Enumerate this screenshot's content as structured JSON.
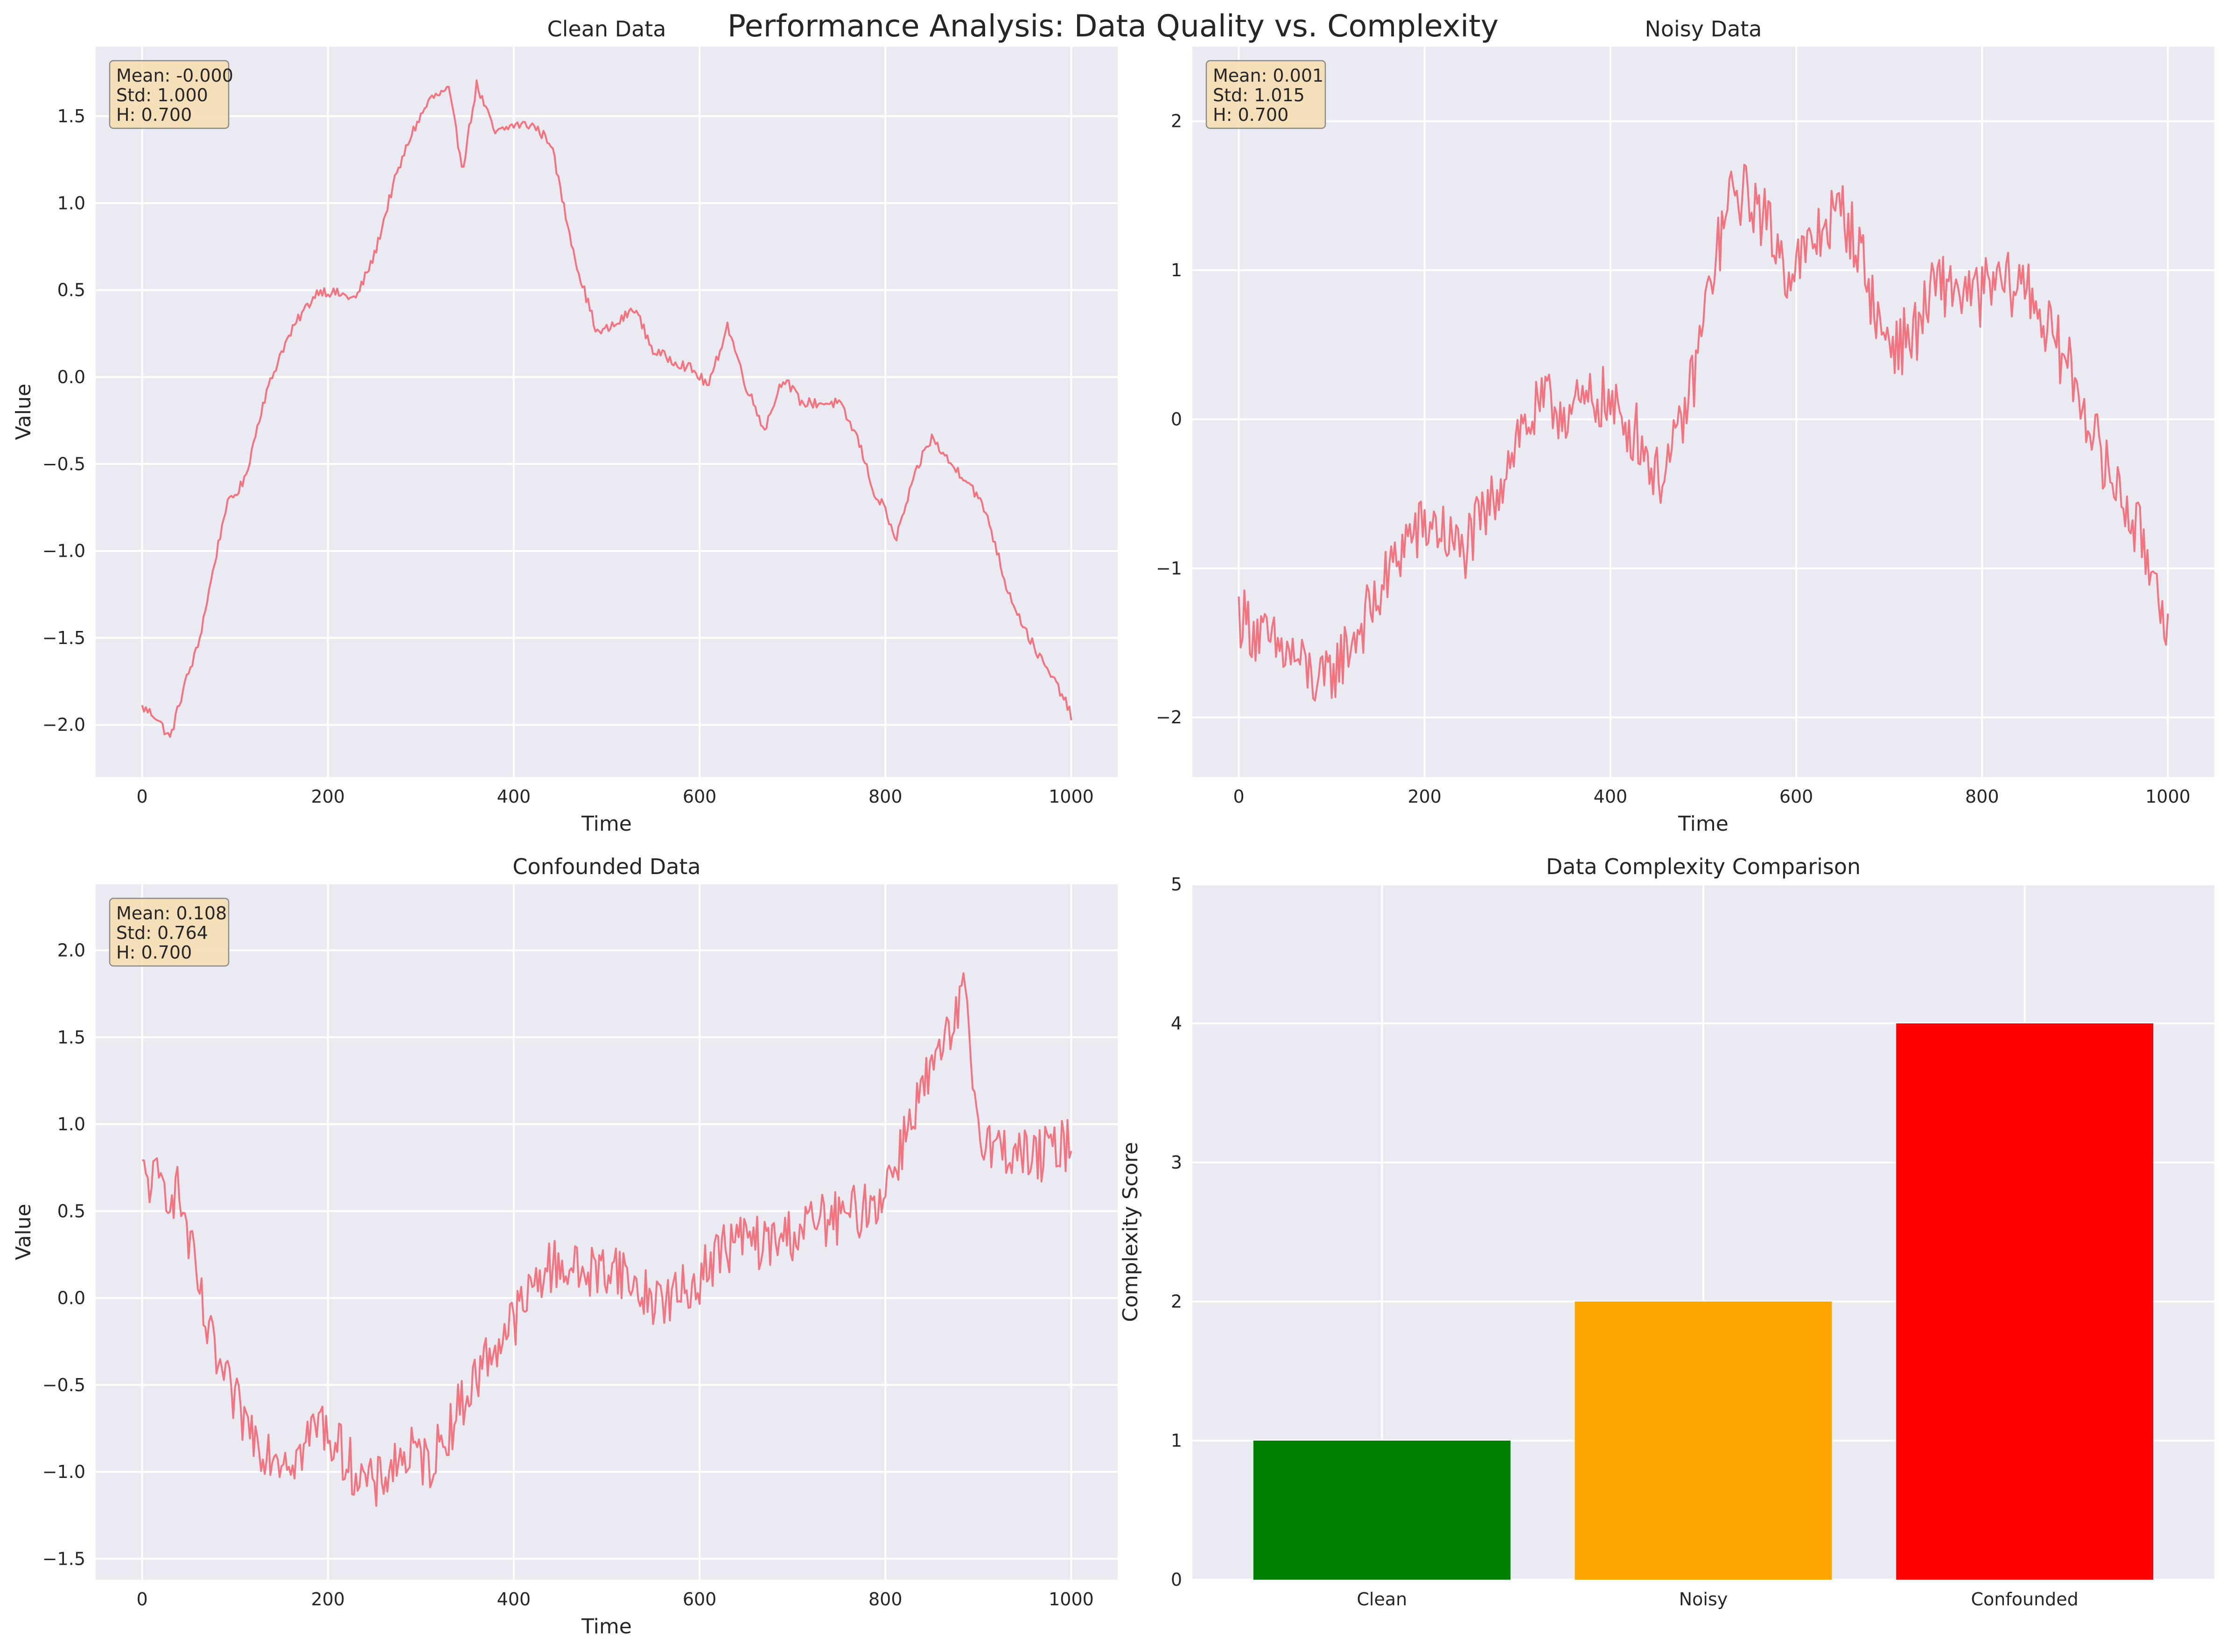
{
  "figure": {
    "title": "Performance Analysis: Data Quality vs. Complexity"
  },
  "colors": {
    "line": "#f3737f",
    "axes_bg": "#eaeaf2",
    "grid": "#ffffff",
    "statbox_fill": "#f5deb3",
    "bar_colors": [
      "#008000",
      "#ffa500",
      "#ff0000"
    ]
  },
  "chart_data": [
    {
      "type": "line",
      "title": "Clean Data",
      "xlabel": "Time",
      "ylabel": "Value",
      "xlim": [
        -50,
        1050
      ],
      "ylim": [
        -2.3,
        1.9
      ],
      "xticks": [
        0,
        200,
        400,
        600,
        800,
        1000
      ],
      "yticks": [
        -2.0,
        -1.5,
        -1.0,
        -0.5,
        0.0,
        0.5,
        1.0,
        1.5
      ],
      "grid": true,
      "stats": [
        "Mean: -0.000",
        "Std: 1.000",
        "H: 0.700"
      ],
      "noise": 0.03,
      "series": [
        {
          "x": [
            0,
            15,
            30,
            45,
            60,
            75,
            90,
            110,
            130,
            150,
            170,
            190,
            210,
            230,
            250,
            270,
            290,
            310,
            330,
            345,
            360,
            380,
            400,
            420,
            440,
            455,
            470,
            490,
            510,
            530,
            550,
            570,
            590,
            610,
            630,
            650,
            670,
            690,
            710,
            730,
            750,
            770,
            790,
            800,
            810,
            830,
            840,
            850,
            870,
            890,
            910,
            930,
            950,
            970,
            990,
            1000
          ],
          "y": [
            -1.9,
            -1.95,
            -2.08,
            -1.78,
            -1.55,
            -1.15,
            -0.75,
            -0.6,
            -0.15,
            0.15,
            0.35,
            0.5,
            0.48,
            0.45,
            0.7,
            1.1,
            1.4,
            1.6,
            1.65,
            1.2,
            1.68,
            1.4,
            1.45,
            1.45,
            1.35,
            0.95,
            0.6,
            0.25,
            0.3,
            0.4,
            0.15,
            0.1,
            0.05,
            -0.05,
            0.3,
            -0.05,
            -0.3,
            0.0,
            -0.15,
            -0.15,
            -0.15,
            -0.35,
            -0.7,
            -0.75,
            -0.95,
            -0.6,
            -0.45,
            -0.35,
            -0.5,
            -0.6,
            -0.8,
            -1.2,
            -1.45,
            -1.65,
            -1.82,
            -1.95
          ]
        }
      ]
    },
    {
      "type": "line",
      "title": "Noisy Data",
      "xlabel": "Time",
      "ylabel": "",
      "xlim": [
        -50,
        1050
      ],
      "ylim": [
        -2.4,
        2.5
      ],
      "xticks": [
        0,
        200,
        400,
        600,
        800,
        1000
      ],
      "yticks": [
        -2,
        -1,
        0,
        1,
        2
      ],
      "grid": true,
      "stats": [
        "Mean: 0.001",
        "Std: 1.015",
        "H: 0.700"
      ],
      "noise": 0.22,
      "series": [
        {
          "x": [
            0,
            30,
            60,
            90,
            120,
            150,
            180,
            210,
            240,
            270,
            300,
            330,
            360,
            390,
            410,
            430,
            450,
            470,
            490,
            510,
            530,
            550,
            570,
            590,
            610,
            630,
            650,
            670,
            690,
            710,
            730,
            750,
            770,
            790,
            810,
            830,
            850,
            870,
            890,
            910,
            930,
            950,
            970,
            990,
            1000
          ],
          "y": [
            -1.3,
            -1.5,
            -1.6,
            -1.8,
            -1.5,
            -1.2,
            -0.8,
            -0.7,
            -0.9,
            -0.6,
            -0.1,
            0.1,
            0.05,
            0.15,
            0.0,
            -0.1,
            -0.4,
            -0.2,
            0.3,
            1.0,
            1.5,
            1.5,
            1.3,
            1.0,
            1.1,
            1.3,
            1.4,
            1.1,
            0.6,
            0.5,
            0.6,
            0.9,
            0.9,
            0.8,
            0.9,
            0.9,
            0.9,
            0.6,
            0.4,
            0.1,
            -0.3,
            -0.5,
            -0.8,
            -1.1,
            -1.4
          ]
        }
      ]
    },
    {
      "type": "line",
      "title": "Confounded Data",
      "xlabel": "Time",
      "ylabel": "Value",
      "xlim": [
        -50,
        1050
      ],
      "ylim": [
        -1.62,
        2.38
      ],
      "xticks": [
        0,
        200,
        400,
        600,
        800,
        1000
      ],
      "yticks": [
        -1.5,
        -1.0,
        -0.5,
        0.0,
        0.5,
        1.0,
        1.5,
        2.0
      ],
      "grid": true,
      "stats": [
        "Mean: 0.108",
        "Std: 0.764",
        "H: 0.700"
      ],
      "noise": 0.16,
      "series": [
        {
          "x": [
            0,
            20,
            40,
            55,
            70,
            90,
            110,
            130,
            150,
            170,
            190,
            210,
            230,
            250,
            270,
            290,
            310,
            330,
            350,
            370,
            390,
            410,
            430,
            450,
            470,
            490,
            510,
            530,
            550,
            570,
            590,
            610,
            630,
            650,
            670,
            690,
            710,
            730,
            750,
            770,
            790,
            810,
            830,
            850,
            870,
            885,
            900,
            920,
            940,
            960,
            980,
            1000
          ],
          "y": [
            0.7,
            0.65,
            0.6,
            0.2,
            -0.2,
            -0.5,
            -0.7,
            -0.85,
            -0.9,
            -0.9,
            -0.7,
            -0.85,
            -1.0,
            -1.1,
            -0.95,
            -0.9,
            -0.95,
            -0.75,
            -0.55,
            -0.35,
            -0.2,
            -0.05,
            0.15,
            0.2,
            0.15,
            0.15,
            0.2,
            0.05,
            0.0,
            0.0,
            0.05,
            0.2,
            0.3,
            0.35,
            0.3,
            0.35,
            0.4,
            0.45,
            0.45,
            0.5,
            0.55,
            0.75,
            1.1,
            1.3,
            1.5,
            1.75,
            1.0,
            0.85,
            0.85,
            0.8,
            0.85,
            0.9
          ]
        }
      ]
    },
    {
      "type": "bar",
      "title": "Data Complexity Comparison",
      "xlabel": "",
      "ylabel": "Complexity Score",
      "categories": [
        "Clean",
        "Noisy",
        "Confounded"
      ],
      "values": [
        1,
        2,
        4
      ],
      "ylim": [
        0,
        5
      ],
      "yticks": [
        0,
        1,
        2,
        3,
        4,
        5
      ],
      "grid": true
    }
  ]
}
